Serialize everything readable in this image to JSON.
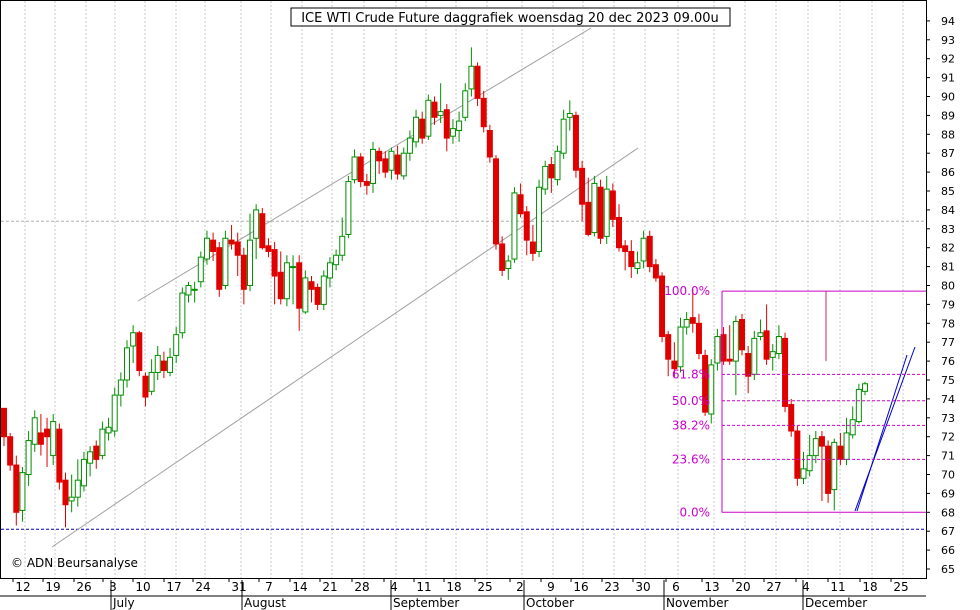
{
  "chart_data": {
    "type": "candlestick",
    "title": "ICE WTI Crude Future daggrafiek woensdag 20 dec 2023 09.00u",
    "copyright": "© ADN Beursanalyse",
    "y_axis": {
      "min": 64.5,
      "max": 95,
      "side": "right",
      "ticks": [
        65,
        66,
        67,
        68,
        69,
        70,
        71,
        72,
        73,
        74,
        75,
        76,
        77,
        78,
        79,
        80,
        81,
        82,
        83,
        84,
        85,
        86,
        87,
        88,
        89,
        90,
        91,
        92,
        93,
        94
      ]
    },
    "x_day_labels": [
      "12",
      "19",
      "26",
      "3",
      "10",
      "17",
      "24",
      "31",
      "7",
      "14",
      "21",
      "28",
      "4",
      "11",
      "18",
      "25",
      "2",
      "9",
      "16",
      "23",
      "30",
      "6",
      "13",
      "20",
      "27",
      "4",
      "11",
      "18",
      "25"
    ],
    "x_month_labels": [
      "July",
      "August",
      "September",
      "October",
      "November",
      "December"
    ],
    "colors": {
      "up": "#009000",
      "down": "#e00000",
      "fib": "#cc00cc",
      "channel_gray": "#a0a0a0",
      "channel_blue": "#0000cc",
      "support": "#0000aa",
      "grid": "#c8c8c8"
    },
    "fibonacci": [
      {
        "label": "100.0%",
        "value": 79.7
      },
      {
        "label": "61.8%",
        "value": 75.3
      },
      {
        "label": "50.0%",
        "value": 73.9
      },
      {
        "label": "38.2%",
        "value": 72.6
      },
      {
        "label": "23.6%",
        "value": 70.8
      },
      {
        "label": "0.0%",
        "value": 68.0
      }
    ],
    "support_level": 67.1,
    "gray_reference_level": 83.4,
    "candles": [
      [
        73.5,
        72.0,
        73.5,
        71.5
      ],
      [
        72.0,
        70.5,
        72.2,
        70.2
      ],
      [
        70.5,
        68.0,
        71.0,
        67.3
      ],
      [
        68.1,
        70.1,
        70.4,
        67.5
      ],
      [
        70.0,
        71.8,
        72.3,
        69.4
      ],
      [
        71.6,
        73.0,
        73.4,
        71.2
      ],
      [
        72.2,
        71.6,
        73.2,
        71.0
      ],
      [
        72.4,
        72.0,
        73.0,
        70.4
      ],
      [
        71.0,
        72.8,
        73.2,
        70.5
      ],
      [
        72.4,
        69.6,
        72.7,
        69.2
      ],
      [
        69.7,
        68.4,
        70.1,
        67.2
      ],
      [
        68.6,
        68.8,
        70.0,
        68.0
      ],
      [
        68.8,
        69.7,
        70.8,
        68.3
      ],
      [
        69.4,
        70.8,
        71.2,
        69.1
      ],
      [
        70.6,
        71.2,
        71.5,
        69.9
      ],
      [
        71.5,
        70.8,
        71.8,
        70.3
      ],
      [
        71.0,
        72.4,
        72.8,
        70.8
      ],
      [
        72.2,
        72.5,
        73.0,
        71.8
      ],
      [
        72.3,
        74.2,
        74.6,
        72.0
      ],
      [
        74.2,
        75.0,
        75.4,
        73.6
      ],
      [
        75.0,
        76.7,
        77.1,
        74.6
      ],
      [
        76.8,
        77.5,
        77.9,
        75.9
      ],
      [
        77.5,
        75.5,
        77.6,
        75.2
      ],
      [
        75.2,
        74.1,
        75.4,
        73.6
      ],
      [
        74.4,
        75.4,
        76.1,
        74.2
      ],
      [
        75.4,
        76.3,
        76.8,
        75.0
      ],
      [
        76.0,
        75.5,
        76.5,
        75.1
      ],
      [
        75.4,
        76.2,
        76.7,
        75.2
      ],
      [
        76.3,
        77.4,
        77.8,
        75.9
      ],
      [
        77.5,
        79.6,
        79.9,
        77.2
      ],
      [
        79.5,
        80.0,
        80.2,
        79.1
      ],
      [
        79.8,
        79.8,
        80.2,
        79.1
      ],
      [
        80.2,
        81.5,
        81.8,
        79.9
      ],
      [
        81.4,
        82.5,
        82.9,
        81.1
      ],
      [
        82.4,
        81.8,
        82.8,
        81.3
      ],
      [
        82.0,
        79.8,
        82.3,
        79.4
      ],
      [
        80.0,
        82.5,
        82.9,
        79.8
      ],
      [
        82.4,
        82.2,
        83.2,
        81.9
      ],
      [
        82.3,
        81.6,
        82.8,
        80.5
      ],
      [
        81.6,
        79.8,
        82.0,
        79.0
      ],
      [
        80.0,
        82.4,
        83.8,
        79.7
      ],
      [
        82.5,
        84.0,
        84.3,
        81.4
      ],
      [
        83.8,
        82.0,
        84.1,
        81.9
      ],
      [
        82.1,
        81.8,
        82.5,
        81.5
      ],
      [
        81.9,
        80.5,
        82.3,
        79.0
      ],
      [
        80.7,
        79.3,
        81.8,
        79.0
      ],
      [
        79.3,
        81.2,
        81.6,
        78.9
      ],
      [
        81.0,
        81.0,
        81.6,
        79.0
      ],
      [
        81.2,
        78.8,
        81.6,
        77.6
      ],
      [
        78.6,
        80.4,
        80.8,
        78.5
      ],
      [
        80.2,
        79.8,
        80.5,
        79.1
      ],
      [
        79.9,
        79.0,
        80.1,
        78.7
      ],
      [
        79.0,
        80.5,
        80.8,
        78.7
      ],
      [
        80.4,
        81.2,
        81.5,
        79.9
      ],
      [
        81.1,
        81.6,
        81.9,
        80.8
      ],
      [
        81.6,
        82.6,
        83.6,
        81.3
      ],
      [
        82.7,
        85.5,
        85.8,
        82.5
      ],
      [
        85.6,
        86.8,
        87.2,
        85.4
      ],
      [
        86.8,
        85.5,
        87.0,
        85.2
      ],
      [
        85.5,
        85.3,
        85.9,
        84.8
      ],
      [
        85.4,
        87.2,
        87.6,
        84.9
      ],
      [
        87.1,
        86.6,
        87.3,
        85.9
      ],
      [
        86.7,
        86.0,
        87.1,
        85.7
      ],
      [
        86.1,
        87.1,
        87.3,
        85.6
      ],
      [
        86.9,
        85.9,
        87.4,
        85.6
      ],
      [
        85.8,
        87.0,
        87.3,
        85.6
      ],
      [
        87.0,
        87.8,
        88.2,
        86.6
      ],
      [
        87.6,
        88.9,
        89.3,
        87.3
      ],
      [
        88.8,
        87.8,
        89.2,
        87.5
      ],
      [
        87.9,
        89.8,
        90.1,
        87.7
      ],
      [
        89.7,
        88.9,
        90.0,
        88.5
      ],
      [
        89.0,
        89.2,
        90.7,
        88.6
      ],
      [
        89.3,
        87.8,
        89.6,
        87.1
      ],
      [
        87.9,
        88.3,
        88.8,
        87.5
      ],
      [
        88.2,
        88.7,
        89.2,
        87.6
      ],
      [
        88.9,
        90.3,
        90.7,
        88.7
      ],
      [
        90.4,
        91.6,
        92.6,
        90.0
      ],
      [
        91.6,
        89.9,
        91.8,
        89.5
      ],
      [
        89.9,
        88.4,
        90.3,
        88.1
      ],
      [
        88.2,
        86.8,
        88.5,
        86.5
      ],
      [
        86.7,
        82.2,
        86.9,
        81.9
      ],
      [
        82.2,
        80.8,
        82.6,
        80.5
      ],
      [
        80.9,
        81.3,
        81.6,
        80.3
      ],
      [
        81.4,
        84.9,
        85.2,
        81.2
      ],
      [
        84.8,
        83.8,
        85.4,
        83.6
      ],
      [
        83.9,
        82.4,
        84.2,
        81.6
      ],
      [
        82.3,
        81.7,
        83.2,
        81.3
      ],
      [
        81.8,
        85.2,
        85.6,
        81.5
      ],
      [
        85.1,
        86.3,
        86.6,
        84.8
      ],
      [
        86.4,
        85.7,
        86.8,
        84.9
      ],
      [
        85.6,
        87.1,
        87.4,
        85.3
      ],
      [
        87.0,
        88.8,
        89.3,
        86.7
      ],
      [
        88.9,
        89.1,
        89.8,
        88.2
      ],
      [
        89.0,
        86.1,
        89.2,
        85.7
      ],
      [
        86.2,
        84.3,
        86.6,
        83.4
      ],
      [
        84.4,
        82.7,
        85.7,
        82.6
      ],
      [
        82.8,
        85.4,
        85.8,
        82.6
      ],
      [
        85.2,
        82.5,
        85.6,
        82.2
      ],
      [
        82.6,
        85.1,
        85.8,
        82.2
      ],
      [
        85.0,
        83.5,
        85.4,
        83.1
      ],
      [
        83.6,
        82.0,
        84.3,
        81.8
      ],
      [
        82.1,
        81.8,
        82.4,
        80.8
      ],
      [
        81.8,
        81.0,
        82.4,
        80.4
      ],
      [
        80.9,
        81.2,
        81.8,
        80.6
      ],
      [
        81.3,
        82.5,
        82.9,
        80.9
      ],
      [
        82.6,
        81.0,
        82.9,
        80.7
      ],
      [
        81.1,
        80.4,
        81.4,
        80.2
      ],
      [
        80.5,
        77.3,
        80.7,
        77.0
      ],
      [
        77.4,
        76.1,
        77.6,
        75.2
      ],
      [
        76.0,
        75.6,
        77.0,
        75.1
      ],
      [
        75.7,
        77.8,
        78.3,
        75.4
      ],
      [
        77.8,
        78.2,
        78.6,
        77.4
      ],
      [
        78.3,
        78.0,
        79.8,
        77.5
      ],
      [
        78.0,
        76.4,
        78.5,
        76.1
      ],
      [
        76.3,
        73.3,
        76.6,
        73.1
      ],
      [
        73.2,
        75.8,
        76.1,
        72.7
      ],
      [
        75.9,
        77.3,
        77.7,
        75.5
      ],
      [
        77.4,
        76.0,
        77.8,
        75.8
      ],
      [
        76.1,
        76.0,
        77.9,
        75.8
      ],
      [
        76.0,
        78.1,
        78.4,
        74.2
      ],
      [
        78.2,
        76.6,
        78.5,
        76.3
      ],
      [
        76.4,
        75.2,
        76.8,
        74.3
      ],
      [
        75.3,
        77.2,
        77.6,
        75.0
      ],
      [
        77.3,
        77.5,
        78.2,
        77.1
      ],
      [
        77.6,
        76.1,
        79.0,
        75.8
      ],
      [
        76.2,
        76.5,
        76.9,
        75.5
      ],
      [
        76.4,
        77.3,
        77.9,
        76.1
      ],
      [
        77.2,
        73.6,
        77.5,
        73.3
      ],
      [
        73.7,
        72.3,
        74.0,
        72.0
      ],
      [
        72.3,
        69.8,
        72.6,
        69.4
      ],
      [
        69.8,
        70.3,
        71.2,
        69.5
      ],
      [
        70.2,
        71.0,
        72.1,
        69.9
      ],
      [
        71.0,
        71.9,
        72.3,
        70.6
      ],
      [
        72.0,
        71.5,
        72.3,
        68.6
      ],
      [
        71.5,
        69.0,
        71.8,
        68.5
      ],
      [
        69.2,
        71.7,
        71.9,
        68.1
      ],
      [
        71.5,
        70.8,
        72.2,
        70.5
      ],
      [
        70.8,
        72.2,
        73.0,
        70.5
      ],
      [
        72.1,
        72.9,
        73.6,
        71.9
      ],
      [
        72.8,
        74.5,
        74.8,
        72.7
      ],
      [
        74.4,
        74.8,
        74.9,
        74.2
      ]
    ]
  }
}
